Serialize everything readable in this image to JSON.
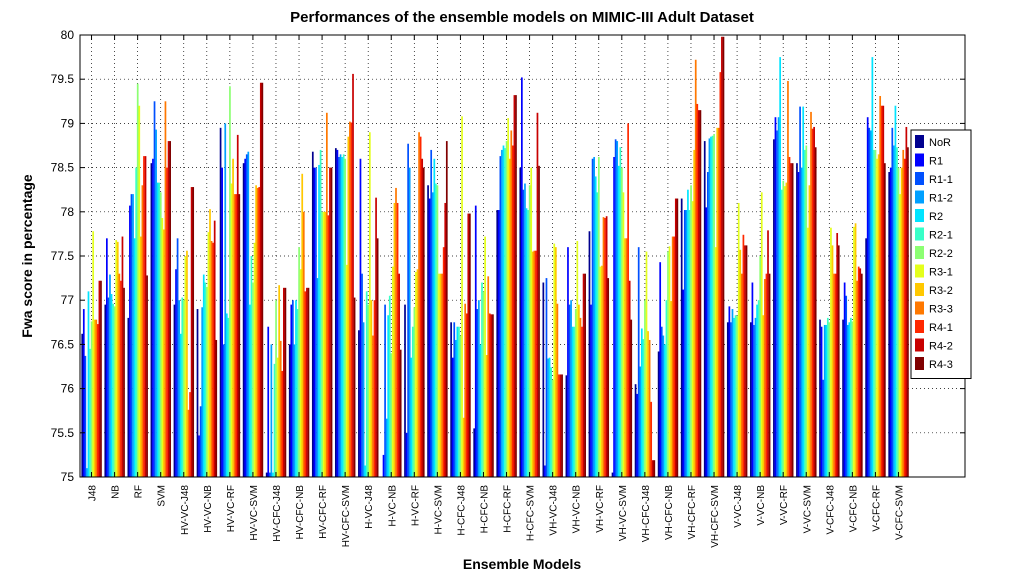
{
  "chart_data": {
    "type": "bar",
    "title": "Performances of the ensemble models on MIMIC-III Adult Dataset",
    "xlabel": "Ensemble Models",
    "ylabel": "Fwa score in percentage",
    "ylim": [
      75,
      80
    ],
    "yticks": [
      "75",
      "75.5",
      "76",
      "76.5",
      "77",
      "77.5",
      "78",
      "78.5",
      "79",
      "79.5",
      "80"
    ],
    "grid": true,
    "legend_position": "right",
    "categories": [
      "J48",
      "NB",
      "RF",
      "SVM",
      "HV-VC-J48",
      "HV-VC-NB",
      "HV-VC-RF",
      "HV-VC-SVM",
      "HV-CFC-J48",
      "HV-CFC-NB",
      "HV-CFC-RF",
      "HV-CFC-SVM",
      "H-VC-J48",
      "H-VC-NB",
      "H-VC-RF",
      "H-VC-SVM",
      "H-CFC-J48",
      "H-CFC-NB",
      "H-CFC-RF",
      "H-CFC-SVM",
      "VH-VC-J48",
      "VH-VC-NB",
      "VH-VC-RF",
      "VH-VC-SVM",
      "VH-CFC-J48",
      "VH-CFC-NB",
      "VH-CFC-RF",
      "VH-CFC-SVM",
      "V-VC-J48",
      "V-VC-NB",
      "V-VC-RF",
      "V-VC-SVM",
      "V-CFC-J48",
      "V-CFC-NB",
      "V-CFC-RF",
      "V-CFC-SVM"
    ],
    "series": [
      {
        "name": "NoR",
        "color": "#00008f",
        "values": [
          76.62,
          76.95,
          76.8,
          78.55,
          76.95,
          76.9,
          78.95,
          78.55,
          75.05,
          76.5,
          78.68,
          78.72,
          76.66,
          75.0,
          76.95,
          78.3,
          76.75,
          75.55,
          78.02,
          78.5,
          77.2,
          76.15,
          77.78,
          75.05,
          76.05,
          76.42,
          78.15,
          78.8,
          76.75,
          76.75,
          78.82,
          78.55,
          76.78,
          76.78,
          77.7,
          78.45
        ]
      },
      {
        "name": "R1",
        "color": "#0000ff",
        "values": [
          76.9,
          77.7,
          78.07,
          78.6,
          77.35,
          75.47,
          78.5,
          78.6,
          76.7,
          76.95,
          78.5,
          78.7,
          78.6,
          75.25,
          75.5,
          78.15,
          76.35,
          78.07,
          78.02,
          79.52,
          75.13,
          77.6,
          76.95,
          78.62,
          75.94,
          77.43,
          77.12,
          78.05,
          76.93,
          77.2,
          79.07,
          78.45,
          76.7,
          77.2,
          79.07,
          78.5
        ]
      },
      {
        "name": "R1-1",
        "color": "#0050ff",
        "values": [
          76.37,
          77.03,
          78.2,
          79.25,
          77.7,
          75.8,
          76.5,
          78.65,
          75.05,
          77.0,
          78.5,
          78.62,
          77.3,
          76.95,
          78.77,
          78.7,
          76.75,
          76.9,
          78.63,
          78.25,
          77.25,
          76.95,
          78.6,
          78.82,
          77.6,
          76.7,
          78.02,
          78.45,
          76.75,
          76.72,
          78.92,
          79.19,
          76.1,
          77.05,
          78.95,
          78.95
        ]
      },
      {
        "name": "R1-2",
        "color": "#00a0ff",
        "values": [
          75.1,
          77.29,
          78.2,
          78.93,
          77.0,
          76.92,
          79.0,
          78.68,
          76.5,
          76.5,
          77.25,
          78.65,
          76.75,
          75.66,
          78.5,
          78.22,
          76.55,
          77.0,
          78.7,
          78.32,
          76.34,
          77.0,
          78.62,
          78.8,
          76.25,
          76.6,
          78.02,
          78.83,
          76.9,
          76.8,
          79.07,
          78.5,
          76.72,
          76.72,
          78.92,
          78.75
        ]
      },
      {
        "name": "R2",
        "color": "#00e4ff",
        "values": [
          77.1,
          77.07,
          77.7,
          78.33,
          76.62,
          77.29,
          76.85,
          76.95,
          75.05,
          77.0,
          78.53,
          78.62,
          75.13,
          76.83,
          76.35,
          78.6,
          76.7,
          76.5,
          78.75,
          78.04,
          76.35,
          76.7,
          78.4,
          78.52,
          76.68,
          76.5,
          78.25,
          78.85,
          76.8,
          76.95,
          79.75,
          79.19,
          76.72,
          76.75,
          79.75,
          79.2
        ]
      },
      {
        "name": "R2-1",
        "color": "#38ffc8",
        "values": [
          76.45,
          76.96,
          78.5,
          78.33,
          77.03,
          77.2,
          76.8,
          77.5,
          76.28,
          76.9,
          78.7,
          78.65,
          77.1,
          77.05,
          76.7,
          78.32,
          76.7,
          77.2,
          78.72,
          78.02,
          76.24,
          76.7,
          78.22,
          78.73,
          76.56,
          77.0,
          78.02,
          78.86,
          76.83,
          77.0,
          78.25,
          78.7,
          76.8,
          76.8,
          78.7,
          78.73
        ]
      },
      {
        "name": "R2-2",
        "color": "#8cff73",
        "values": [
          76.76,
          76.93,
          79.45,
          78.22,
          77.0,
          77.15,
          79.42,
          77.2,
          77.0,
          77.6,
          78.0,
          78.6,
          76.95,
          76.4,
          76.92,
          78.3,
          76.6,
          77.1,
          78.8,
          78.3,
          76.1,
          76.9,
          78.62,
          78.5,
          77.0,
          77.55,
          78.3,
          78.88,
          76.82,
          77.5,
          78.35,
          78.75,
          76.75,
          76.76,
          78.7,
          78.5
        ]
      },
      {
        "name": "R3-1",
        "color": "#e4ff1c",
        "values": [
          77.78,
          77.68,
          79.2,
          77.93,
          77.5,
          77.77,
          78.32,
          77.65,
          76.35,
          77.35,
          78.0,
          77.4,
          78.9,
          77.38,
          77.32,
          77.3,
          79.08,
          77.72,
          79.06,
          78.5,
          77.64,
          77.67,
          77.38,
          78.22,
          77.55,
          77.61,
          78.12,
          77.6,
          78.1,
          78.22,
          78.29,
          77.82,
          77.82,
          77.83,
          78.6,
          78.2
        ]
      },
      {
        "name": "R3-2",
        "color": "#ffc800",
        "values": [
          76.78,
          77.66,
          77.72,
          77.8,
          77.56,
          78.03,
          78.6,
          78.3,
          77.17,
          78.43,
          78.0,
          78.85,
          77.0,
          78.1,
          77.35,
          77.3,
          75.67,
          76.38,
          78.6,
          77.55,
          77.6,
          76.95,
          77.39,
          77.7,
          76.65,
          76.99,
          78.7,
          78.95,
          77.57,
          76.83,
          78.33,
          78.3,
          77.62,
          77.87,
          78.65,
          78.5
        ]
      },
      {
        "name": "R3-3",
        "color": "#ff7800",
        "values": [
          76.78,
          77.3,
          78.3,
          79.25,
          75.76,
          77.67,
          78.2,
          78.27,
          76.54,
          78.0,
          79.12,
          79.02,
          76.6,
          78.27,
          78.9,
          77.3,
          76.96,
          77.27,
          78.92,
          77.56,
          76.96,
          76.8,
          77.94,
          77.7,
          76.55,
          77.72,
          79.72,
          78.95,
          77.3,
          77.24,
          79.48,
          79.13,
          77.3,
          77.22,
          79.31,
          78.7
        ]
      },
      {
        "name": "R4-1",
        "color": "#ff2800",
        "values": [
          76.73,
          77.22,
          78.63,
          78.5,
          75.96,
          77.65,
          78.2,
          78.28,
          76.2,
          77.1,
          77.96,
          79.01,
          77.0,
          78.1,
          78.85,
          77.6,
          76.85,
          76.85,
          78.75,
          77.56,
          76.16,
          76.7,
          77.93,
          79.0,
          75.85,
          77.72,
          79.22,
          79.58,
          77.74,
          77.3,
          78.62,
          78.94,
          77.3,
          77.38,
          79.2,
          78.6
        ]
      },
      {
        "name": "R4-2",
        "color": "#c80000",
        "values": [
          77.22,
          77.72,
          78.63,
          78.8,
          78.28,
          77.9,
          78.87,
          79.46,
          77.14,
          77.14,
          78.5,
          79.56,
          78.16,
          77.3,
          78.6,
          78.1,
          77.98,
          76.84,
          79.32,
          79.12,
          76.16,
          77.3,
          77.95,
          77.22,
          75.19,
          78.15,
          79.15,
          79.98,
          77.62,
          77.79,
          78.55,
          78.96,
          77.76,
          77.36,
          79.2,
          78.96
        ]
      },
      {
        "name": "R4-3",
        "color": "#800000",
        "values": [
          77.22,
          77.14,
          77.28,
          78.8,
          78.28,
          76.55,
          78.2,
          79.46,
          77.14,
          77.14,
          78.5,
          77.03,
          77.7,
          76.44,
          78.5,
          78.8,
          77.98,
          76.84,
          79.32,
          78.52,
          76.16,
          77.3,
          77.25,
          76.78,
          75.19,
          78.15,
          79.15,
          79.98,
          77.62,
          77.3,
          78.55,
          78.73,
          77.62,
          77.3,
          78.55,
          78.73
        ]
      }
    ]
  }
}
